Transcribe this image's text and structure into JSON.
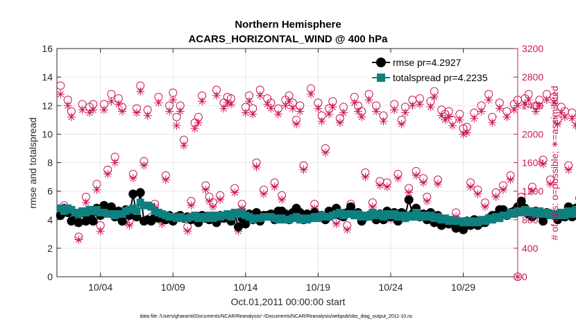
{
  "chart_data": {
    "type": "line",
    "title": "Northern Hemisphere",
    "subtitle": "ACARS_HORIZONTAL_WIND @ 400 hPa",
    "xlabel": "Oct.01,2011 00:00:00 start",
    "ylabel": "rmse and totalspread",
    "ylabel_right": "# of obs: o=possible; ∗=assimilated",
    "footnote": "data file: /Users/gharamti/Documents/NCAR/Reanalysis/~/Documents/NCAR/Reanalysis/webpub/obs_diag_output_2011-10.nc",
    "xlim": [
      0,
      31.75
    ],
    "ylim": [
      0,
      16
    ],
    "ylim_right": [
      0,
      3200
    ],
    "x_ticks": [
      3,
      8,
      13,
      18,
      23,
      28
    ],
    "x_tick_labels": [
      "10/04",
      "10/09",
      "10/14",
      "10/19",
      "10/24",
      "10/29"
    ],
    "y_ticks": [
      0,
      2,
      4,
      6,
      8,
      10,
      12,
      14,
      16
    ],
    "y_tick_labels": [
      "0",
      "2",
      "4",
      "6",
      "8",
      "10",
      "12",
      "14",
      "16"
    ],
    "y_right_ticks": [
      0,
      400,
      800,
      1200,
      1600,
      2000,
      2400,
      2800,
      3200
    ],
    "y_right_tick_labels": [
      "0",
      "400",
      "800",
      "1200",
      "1600",
      "2000",
      "2400",
      "2800",
      "3200"
    ],
    "colors": {
      "rmse": "#000000",
      "totalspread": "#0f8080",
      "obs": "#cc1456",
      "axis": "#262626",
      "right_axis": "#cc1456"
    },
    "legend": {
      "position": "top-right",
      "entries": [
        "rmse pr=4.2927",
        "totalspread pr=4.2235"
      ]
    },
    "x_step_days": 0.25,
    "series": [
      {
        "name": "rmse",
        "values": [
          4.3,
          4.8,
          4.5,
          3.9,
          4.4,
          3.8,
          4.5,
          3.9,
          4.2,
          3.9,
          4.8,
          4.3,
          5.0,
          4.6,
          4.9,
          4.2,
          4.6,
          3.9,
          4.7,
          4.3,
          5.8,
          4.2,
          5.9,
          3.9,
          4.0,
          3.9,
          4.2,
          4.1,
          4.3,
          4.0,
          4.3,
          3.9,
          4.2,
          4.3,
          4.1,
          4.2,
          4.0,
          4.2,
          3.8,
          4.3,
          4.1,
          4.0,
          4.2,
          3.8,
          4.3,
          4.1,
          4.2,
          3.9,
          4.4,
          3.5,
          4.1,
          3.7,
          4.4,
          4.0,
          4.5,
          3.9,
          4.3,
          4.3,
          4.4,
          4.0,
          4.6,
          4.6,
          4.4,
          4.0,
          4.5,
          4.8,
          4.5,
          4.0,
          4.4,
          4.2,
          4.5,
          4.3,
          4.3,
          4.0,
          4.6,
          4.4,
          4.8,
          4.3,
          4.2,
          4.5,
          4.9,
          4.4,
          4.5,
          3.9,
          4.2,
          4.3,
          4.4,
          4.0,
          4.4,
          4.0,
          4.6,
          4.2,
          4.5,
          3.9,
          4.5,
          4.3,
          5.4,
          4.4,
          4.8,
          4.2,
          4.4,
          4.0,
          4.5,
          3.8,
          4.3,
          3.6,
          4.0,
          3.7,
          3.8,
          3.4,
          3.6,
          3.3,
          3.9,
          3.6,
          4.0,
          3.6,
          3.8,
          3.8,
          4.1,
          4.3,
          4.3,
          4.7,
          4.7,
          4.3,
          4.5,
          4.6,
          4.9,
          5.3,
          4.8,
          4.4,
          4.2,
          4.6,
          4.4,
          3.9,
          4.5,
          4.4,
          4.3,
          4.0,
          4.3,
          4.2,
          4.9,
          4.2,
          4.8,
          4.2,
          4.5,
          4.0,
          4.2,
          4.1,
          4.1,
          4.4,
          4.5,
          4.2,
          4.3,
          4.1,
          4.4,
          4.1,
          4.3,
          4.3,
          4.4,
          4.2,
          4.4,
          4.3
        ]
      },
      {
        "name": "totalspread",
        "values": [
          4.8,
          4.6,
          4.8,
          4.7,
          4.5,
          4.4,
          4.6,
          4.5,
          4.7,
          4.6,
          4.7,
          4.5,
          4.5,
          4.4,
          4.4,
          4.3,
          4.4,
          4.4,
          4.6,
          4.7,
          4.8,
          4.6,
          5.2,
          5.0,
          5.0,
          4.9,
          4.6,
          4.5,
          4.4,
          4.3,
          4.2,
          4.2,
          4.1,
          4.2,
          4.1,
          4.1,
          4.2,
          4.3,
          4.1,
          4.2,
          4.1,
          4.3,
          4.1,
          4.3,
          4.2,
          4.3,
          4.4,
          4.2,
          4.5,
          4.4,
          4.5,
          4.3,
          4.2,
          4.0,
          4.1,
          4.1,
          4.2,
          4.2,
          4.2,
          4.1,
          4.0,
          4.1,
          4.0,
          4.0,
          4.1,
          4.2,
          4.0,
          4.1,
          4.0,
          4.1,
          4.2,
          4.1,
          4.3,
          4.2,
          4.2,
          4.3,
          4.4,
          4.5,
          4.3,
          4.4,
          4.4,
          4.3,
          4.4,
          4.2,
          4.3,
          4.2,
          4.5,
          4.3,
          4.4,
          4.2,
          4.4,
          4.3,
          4.4,
          4.2,
          4.3,
          4.1,
          4.3,
          4.2,
          4.5,
          4.2,
          4.3,
          4.2,
          4.3,
          4.1,
          4.2,
          4.0,
          4.1,
          3.9,
          4.0,
          3.9,
          3.9,
          3.8,
          3.9,
          3.8,
          3.9,
          3.8,
          4.0,
          3.9,
          4.1,
          4.0,
          4.2,
          4.1,
          4.3,
          4.3,
          4.5,
          4.4,
          4.6,
          4.5,
          4.7,
          4.5,
          4.6,
          4.4,
          4.6,
          4.4,
          4.5,
          4.3,
          4.4,
          4.3,
          4.5,
          4.3,
          4.6,
          4.4,
          4.7,
          4.4,
          4.5,
          4.3,
          4.4,
          4.2,
          4.3,
          4.3,
          4.4,
          4.3,
          4.4,
          4.2,
          4.3,
          4.3,
          4.4,
          4.4,
          4.5,
          4.4
        ]
      },
      {
        "name": "obs_possible",
        "axis": "right",
        "values": [
          2680,
          1000,
          2480,
          2320,
          800,
          560,
          2420,
          1120,
          2380,
          2420,
          1300,
          720,
          2420,
          1500,
          2560,
          1680,
          2500,
          2380,
          820,
          780,
          1440,
          2360,
          2680,
          1620,
          2340,
          840,
          1020,
          2520,
          820,
          1420,
          2400,
          2580,
          2240,
          2400,
          1920,
          700,
          1060,
          2160,
          2240,
          2540,
          1280,
          1120,
          1040,
          2620,
          1140,
          2440,
          2520,
          2500,
          1240,
          700,
          1020,
          2380,
          2540,
          2360,
          1600,
          2620,
          1220,
          2500,
          2440,
          1320,
          2360,
          1140,
          2480,
          2540,
          2440,
          2200,
          2400,
          1560,
          880,
          2640,
          1020,
          2440,
          2260,
          1800,
          2360,
          2460,
          800,
          2220,
          2380,
          720,
          1020,
          2520,
          2400,
          2320,
          1460,
          2560,
          1040,
          2400,
          1340,
          2260,
          1320,
          860,
          2420,
          1440,
          2200,
          2380,
          1240,
          2480,
          1480,
          2500,
          1380,
          1120,
          2460,
          2600,
          1360,
          2340,
          2280,
          2320,
          2200,
          900,
          2280,
          2080,
          2100,
          1320,
          2300,
          1220,
          2400,
          1040,
          2560,
          2240,
          1180,
          2440,
          1280,
          2320,
          1420,
          2420,
          2480,
          1120,
          2500,
          2560,
          1260,
          2400,
          2480,
          1640,
          2560,
          1360,
          2520,
          2200,
          2380,
          2320,
          1560,
          2300,
          2200,
          1100,
          2240,
          2240,
          1040,
          2420,
          2460,
          1280,
          2400,
          960,
          2300,
          2340,
          2280,
          2320,
          1240,
          2420,
          2300,
          2460,
          1200,
          2400
        ]
      },
      {
        "name": "obs_assimilated",
        "axis": "right",
        "values": [
          2560,
          960,
          2400,
          2240,
          760,
          520,
          2340,
          1040,
          2300,
          2340,
          1220,
          640,
          2340,
          1440,
          2460,
          1600,
          2420,
          2320,
          760,
          720,
          1380,
          2300,
          2600,
          1560,
          2260,
          780,
          980,
          2440,
          740,
          1360,
          2320,
          2480,
          2120,
          2320,
          1840,
          640,
          1000,
          2080,
          2160,
          2460,
          1220,
          1060,
          980,
          2540,
          1080,
          2360,
          2440,
          2420,
          1180,
          640,
          960,
          2300,
          2460,
          2280,
          1540,
          2540,
          1160,
          2420,
          2360,
          1260,
          2280,
          1080,
          2400,
          2460,
          2360,
          2140,
          2320,
          1500,
          820,
          2560,
          960,
          2360,
          2180,
          1740,
          2280,
          2380,
          740,
          2160,
          2300,
          660,
          960,
          2440,
          2320,
          2240,
          1400,
          2480,
          980,
          2320,
          1280,
          2180,
          1260,
          800,
          2340,
          1380,
          2140,
          2300,
          1180,
          2400,
          1420,
          2420,
          1320,
          1060,
          2380,
          2520,
          1300,
          2260,
          2200,
          2240,
          2120,
          840,
          2200,
          2000,
          2020,
          1260,
          2220,
          1160,
          2320,
          980,
          2480,
          2160,
          1120,
          2360,
          1220,
          2240,
          1360,
          2340,
          2400,
          1060,
          2420,
          2480,
          1200,
          2320,
          2400,
          1580,
          2480,
          1300,
          2440,
          2140,
          2300,
          2240,
          1500,
          2220,
          2120,
          1040,
          2160,
          2160,
          980,
          2340,
          2380,
          1220,
          2320,
          900,
          2220,
          2260,
          2200,
          2240,
          1180,
          2340,
          2220,
          2380,
          1140,
          2320
        ]
      }
    ]
  }
}
